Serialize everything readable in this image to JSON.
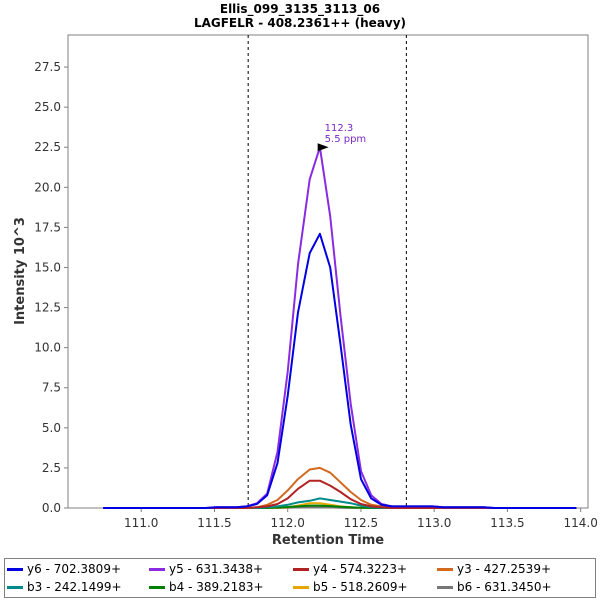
{
  "title_line1": "Ellis_099_3135_3113_06",
  "title_line2": "LAGFELR - 408.2361++ (heavy)",
  "chart_data": {
    "type": "line",
    "xlabel": "Retention Time",
    "ylabel": "Intensity 10^3",
    "xlim": [
      110.5,
      114.05
    ],
    "ylim": [
      0,
      29.5
    ],
    "xticks": [
      "111.0",
      "111.5",
      "112.0",
      "112.5",
      "113.0",
      "113.5",
      "114.0"
    ],
    "yticks": [
      "0.0",
      "2.5",
      "5.0",
      "7.5",
      "10.0",
      "12.5",
      "15.0",
      "17.5",
      "20.0",
      "22.5",
      "25.0",
      "27.5"
    ],
    "vlines": [
      111.73,
      112.81
    ],
    "grid": false,
    "legend_position": "bottom",
    "annotation": {
      "x": 112.3,
      "y": 22.5,
      "line1": "112.3",
      "line2": "5.5 ppm",
      "color": "#7b28c8"
    },
    "x": [
      110.74,
      110.81,
      110.88,
      110.95,
      111.02,
      111.09,
      111.16,
      111.23,
      111.3,
      111.37,
      111.44,
      111.51,
      111.58,
      111.65,
      111.72,
      111.79,
      111.86,
      111.93,
      112.0,
      112.07,
      112.15,
      112.22,
      112.29,
      112.36,
      112.43,
      112.5,
      112.57,
      112.64,
      112.71,
      112.78,
      112.85,
      112.92,
      112.99,
      113.06,
      113.13,
      113.2,
      113.27,
      113.34,
      113.41,
      113.48,
      113.55,
      113.62,
      113.69,
      113.76,
      113.83,
      113.9,
      113.97
    ],
    "series": [
      {
        "name": "y6 - 702.3809+",
        "color": "#0000e0",
        "values": [
          0,
          0,
          0,
          0,
          0,
          0,
          0,
          0,
          0,
          0,
          0,
          0.05,
          0.05,
          0.05,
          0.1,
          0.25,
          0.8,
          2.8,
          7,
          12.2,
          15.9,
          17.1,
          15,
          10.2,
          5.2,
          1.8,
          0.6,
          0.2,
          0.1,
          0.1,
          0.1,
          0.1,
          0.1,
          0.05,
          0.05,
          0.05,
          0.05,
          0.05,
          0,
          0,
          0,
          0,
          0,
          0,
          0,
          0,
          0
        ]
      },
      {
        "name": "y5 - 631.3438+",
        "color": "#8a2be2",
        "values": [
          0,
          0,
          0,
          0,
          0,
          0,
          0,
          0,
          0,
          0,
          0,
          0.05,
          0.05,
          0.05,
          0.1,
          0.3,
          0.9,
          3.5,
          8.5,
          15.2,
          20.5,
          22.5,
          18.2,
          12,
          6.5,
          2.3,
          0.8,
          0.25,
          0.1,
          0.1,
          0.1,
          0.1,
          0.1,
          0.05,
          0.05,
          0.05,
          0.05,
          0.05,
          0,
          0,
          0,
          0,
          0,
          0,
          0,
          0,
          0
        ]
      },
      {
        "name": "y4 - 574.3223+",
        "color": "#b22222",
        "values": [
          0,
          0,
          0,
          0,
          0,
          0,
          0,
          0,
          0,
          0,
          0,
          0,
          0,
          0,
          0,
          0.05,
          0.1,
          0.25,
          0.6,
          1.2,
          1.7,
          1.7,
          1.4,
          1,
          0.55,
          0.25,
          0.1,
          0.05,
          0,
          0,
          0,
          0,
          0,
          0,
          0,
          0,
          0,
          0,
          0,
          0,
          0,
          0,
          0,
          0,
          0,
          0,
          0
        ]
      },
      {
        "name": "y3 - 427.2539+",
        "color": "#d2691e",
        "values": [
          0,
          0,
          0,
          0,
          0,
          0,
          0,
          0,
          0,
          0,
          0,
          0,
          0,
          0,
          0,
          0.05,
          0.2,
          0.5,
          1.1,
          1.8,
          2.4,
          2.5,
          2.2,
          1.6,
          1,
          0.5,
          0.2,
          0.1,
          0.05,
          0,
          0,
          0,
          0,
          0,
          0,
          0,
          0,
          0,
          0,
          0,
          0,
          0,
          0,
          0,
          0,
          0,
          0
        ]
      },
      {
        "name": "b3 - 242.1499+",
        "color": "#008b8b",
        "values": [
          0,
          0,
          0,
          0,
          0,
          0,
          0,
          0,
          0,
          0,
          0,
          0,
          0,
          0,
          0,
          0,
          0.05,
          0.1,
          0.2,
          0.35,
          0.45,
          0.6,
          0.5,
          0.4,
          0.3,
          0.15,
          0.05,
          0,
          0,
          0,
          0,
          0,
          0,
          0,
          0,
          0,
          0,
          0,
          0,
          0,
          0,
          0,
          0,
          0,
          0,
          0,
          0
        ]
      },
      {
        "name": "b4 - 389.2183+",
        "color": "#008000",
        "values": [
          0,
          0,
          0,
          0,
          0,
          0,
          0,
          0,
          0,
          0,
          0,
          0,
          0,
          0,
          0,
          0,
          0,
          0.03,
          0.06,
          0.1,
          0.15,
          0.15,
          0.12,
          0.08,
          0.05,
          0.02,
          0,
          0,
          0,
          0,
          0,
          0,
          0,
          0,
          0,
          0,
          0,
          0,
          0,
          0,
          0,
          0,
          0,
          0,
          0,
          0,
          0
        ]
      },
      {
        "name": "b5 - 518.2609+",
        "color": "#e6a800",
        "values": [
          0,
          0,
          0,
          0,
          0,
          0,
          0,
          0,
          0,
          0,
          0,
          0,
          0,
          0,
          0,
          0,
          0,
          0.02,
          0.05,
          0.15,
          0.3,
          0.3,
          0.2,
          0.1,
          0.05,
          0,
          0,
          0,
          0,
          0,
          0,
          0,
          0,
          0,
          0,
          0,
          0,
          0,
          0,
          0,
          0,
          0,
          0,
          0,
          0,
          0,
          0
        ]
      },
      {
        "name": "b6 - 631.3450+",
        "color": "#777777",
        "values": [
          0,
          0,
          0,
          0,
          0,
          0,
          0,
          0,
          0,
          0,
          0,
          0,
          0,
          0,
          0,
          0,
          0,
          0,
          0.02,
          0.04,
          0.06,
          0.06,
          0.04,
          0.02,
          0,
          0,
          0,
          0,
          0,
          0,
          0,
          0,
          0,
          0,
          0,
          0,
          0,
          0,
          0,
          0,
          0,
          0,
          0,
          0,
          0,
          0,
          0
        ]
      }
    ]
  }
}
